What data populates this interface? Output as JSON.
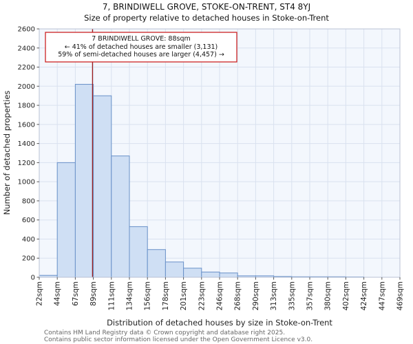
{
  "chart_data": {
    "type": "bar",
    "title": "7, BRINDIWELL GROVE, STOKE-ON-TRENT, ST4 8YJ",
    "subtitle": "Size of property relative to detached houses in Stoke-on-Trent",
    "xlabel": "Distribution of detached houses by size in Stoke-on-Trent",
    "ylabel": "Number of detached properties",
    "bin_labels": [
      "22sqm",
      "44sqm",
      "67sqm",
      "89sqm",
      "111sqm",
      "134sqm",
      "156sqm",
      "178sqm",
      "201sqm",
      "223sqm",
      "246sqm",
      "268sqm",
      "290sqm",
      "313sqm",
      "335sqm",
      "357sqm",
      "380sqm",
      "402sqm",
      "424sqm",
      "447sqm",
      "469sqm"
    ],
    "bin_edges_sqm": [
      22,
      44,
      67,
      89,
      111,
      134,
      156,
      178,
      201,
      223,
      246,
      268,
      290,
      313,
      335,
      357,
      380,
      402,
      424,
      447,
      469
    ],
    "values": [
      20,
      1200,
      2020,
      1900,
      1270,
      530,
      290,
      160,
      95,
      55,
      45,
      15,
      15,
      8,
      5,
      5,
      5,
      3,
      0,
      0
    ],
    "ylim": [
      0,
      2600
    ],
    "ytick_step": 200,
    "grid": true,
    "legend": null,
    "marker": {
      "value_sqm": 88,
      "color": "#9b1c1c"
    },
    "annotation": {
      "line1": "7 BRINDIWELL GROVE: 88sqm",
      "line2": "← 41% of detached houses are smaller (3,131)",
      "line3": "59% of semi-detached houses are larger (4,457) →",
      "border_color": "#cc2222"
    },
    "colors": {
      "bar_fill": "#cfdff4",
      "bar_stroke": "#6890c8",
      "grid": "#d9e1ef",
      "plot_bg": "#f3f7fd",
      "plot_border": "#b9c2d4",
      "axis_text": "#222222",
      "tick_mark": "#555555"
    }
  },
  "footer": {
    "line1": "Contains HM Land Registry data © Crown copyright and database right 2025.",
    "line2": "Contains public sector information licensed under the Open Government Licence v3.0."
  }
}
